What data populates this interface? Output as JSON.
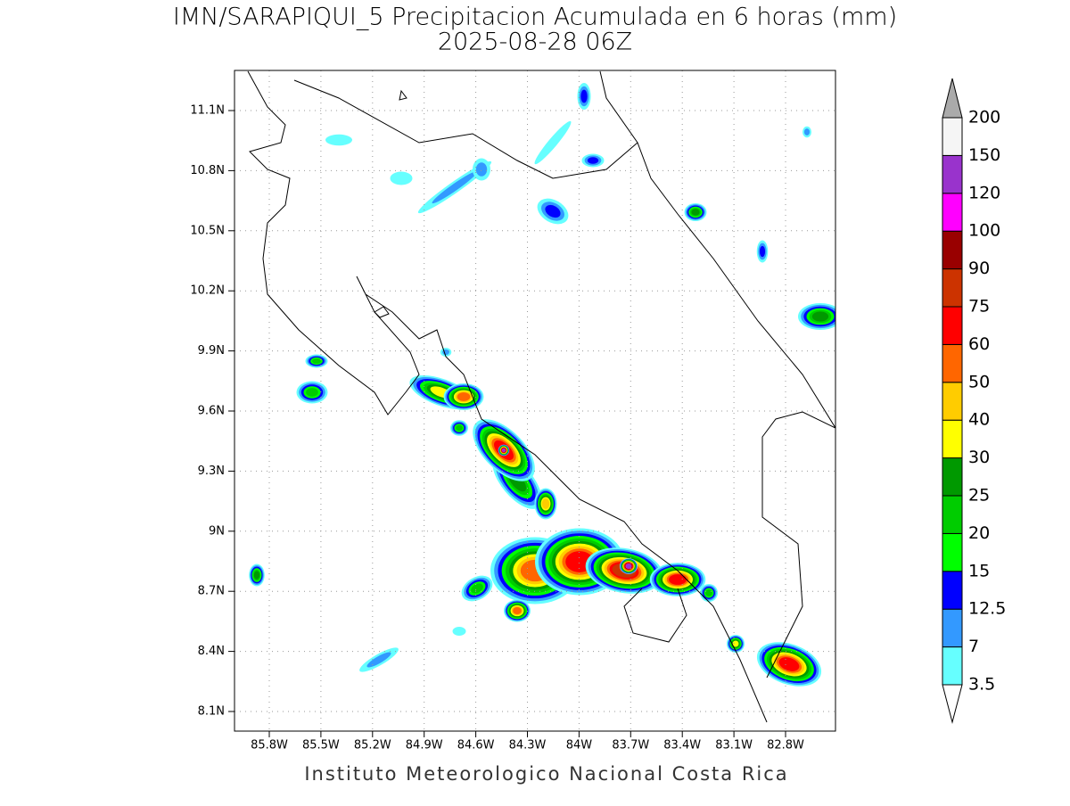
{
  "header": {
    "title": "IMN/SARAPIQUI_5 Precipitacion Acumulada en 6 horas (mm)",
    "subtitle": "2025-08-28 06Z"
  },
  "map": {
    "lat_labels": [
      "11.1N",
      "10.8N",
      "10.5N",
      "10.2N",
      "9.9N",
      "9.6N",
      "9.3N",
      "9N",
      "8.7N",
      "8.4N",
      "8.1N"
    ],
    "lon_labels": [
      "85.8W",
      "85.5W",
      "85.2W",
      "84.9W",
      "84.6W",
      "84.3W",
      "84W",
      "83.7W",
      "83.4W",
      "83.1W",
      "82.8W"
    ]
  },
  "colorbar": {
    "levels": [
      3.5,
      7,
      12.5,
      15,
      20,
      25,
      30,
      40,
      50,
      60,
      75,
      90,
      100,
      120,
      150,
      200
    ],
    "colors": [
      "#66ffff",
      "#3399ff",
      "#0000ff",
      "#00ff00",
      "#00cc00",
      "#009900",
      "#ffff00",
      "#ffcc00",
      "#ff6600",
      "#ff0000",
      "#cc3300",
      "#990000",
      "#ff00ff",
      "#9933cc",
      "#f5f5f5"
    ]
  },
  "footer": "Instituto Meteorologico Nacional Costa Rica"
}
